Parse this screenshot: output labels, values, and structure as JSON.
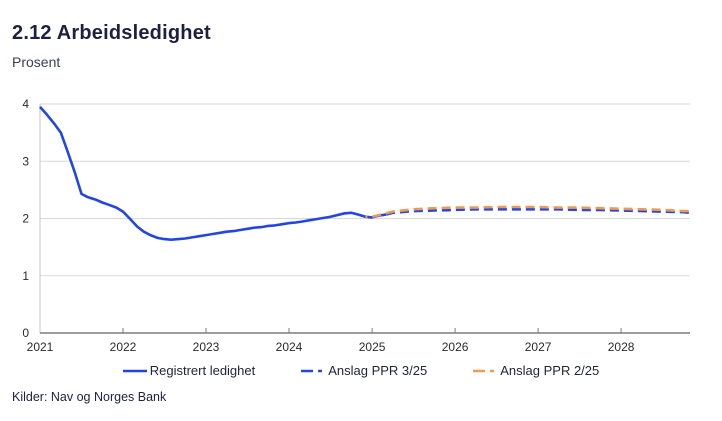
{
  "header": {
    "title": "2.12 Arbeidsledighet",
    "subtitle": "Prosent"
  },
  "source": "Kilder: Nav og Norges Bank",
  "colors": {
    "blue": "#2346e2",
    "orange": "#ef9a52",
    "grid": "#d9d9d9",
    "spine": "#c4c4c4",
    "axis": "#7d7d7d",
    "tick_text": "#2b2b2b"
  },
  "legend": [
    {
      "label": "Registrert ledighet",
      "color": "#2346e2",
      "dash": "solid"
    },
    {
      "label": "Anslag PPR 3/25",
      "color": "#2346e2",
      "dash": "dashed"
    },
    {
      "label": "Anslag PPR 2/25",
      "color": "#ef9a52",
      "dash": "dashed"
    }
  ],
  "chart_data": {
    "type": "line",
    "title": "2.12 Arbeidsledighet",
    "ylabel": "Prosent",
    "xlabel": "",
    "ylim": [
      0,
      4
    ],
    "yticks": [
      0,
      1,
      2,
      3,
      4
    ],
    "xlim": [
      2021,
      2028.83
    ],
    "xticks": [
      2021,
      2022,
      2023,
      2024,
      2025,
      2026,
      2027,
      2028
    ],
    "grid": true,
    "legend_position": "bottom",
    "series": [
      {
        "name": "Registrert ledighet",
        "color": "#2346e2",
        "dash": "solid",
        "points": [
          [
            2021.0,
            3.95
          ],
          [
            2021.08,
            3.82
          ],
          [
            2021.17,
            3.66
          ],
          [
            2021.25,
            3.5
          ],
          [
            2021.33,
            3.18
          ],
          [
            2021.42,
            2.8
          ],
          [
            2021.5,
            2.43
          ],
          [
            2021.58,
            2.37
          ],
          [
            2021.67,
            2.33
          ],
          [
            2021.75,
            2.28
          ],
          [
            2021.83,
            2.24
          ],
          [
            2021.92,
            2.19
          ],
          [
            2022.0,
            2.12
          ],
          [
            2022.08,
            2.0
          ],
          [
            2022.17,
            1.86
          ],
          [
            2022.25,
            1.77
          ],
          [
            2022.33,
            1.71
          ],
          [
            2022.42,
            1.66
          ],
          [
            2022.5,
            1.64
          ],
          [
            2022.58,
            1.63
          ],
          [
            2022.67,
            1.64
          ],
          [
            2022.75,
            1.65
          ],
          [
            2022.83,
            1.67
          ],
          [
            2022.92,
            1.69
          ],
          [
            2023.0,
            1.71
          ],
          [
            2023.08,
            1.73
          ],
          [
            2023.17,
            1.75
          ],
          [
            2023.25,
            1.77
          ],
          [
            2023.33,
            1.78
          ],
          [
            2023.42,
            1.8
          ],
          [
            2023.5,
            1.82
          ],
          [
            2023.58,
            1.84
          ],
          [
            2023.67,
            1.85
          ],
          [
            2023.75,
            1.87
          ],
          [
            2023.83,
            1.88
          ],
          [
            2023.92,
            1.9
          ],
          [
            2024.0,
            1.92
          ],
          [
            2024.08,
            1.93
          ],
          [
            2024.17,
            1.95
          ],
          [
            2024.25,
            1.97
          ],
          [
            2024.33,
            1.99
          ],
          [
            2024.42,
            2.01
          ],
          [
            2024.5,
            2.03
          ],
          [
            2024.58,
            2.06
          ],
          [
            2024.67,
            2.09
          ],
          [
            2024.75,
            2.1
          ],
          [
            2024.83,
            2.07
          ],
          [
            2024.92,
            2.03
          ],
          [
            2025.0,
            2.02
          ],
          [
            2025.08,
            2.05
          ],
          [
            2025.17,
            2.07
          ]
        ]
      },
      {
        "name": "Anslag PPR 3/25",
        "color": "#2346e2",
        "dash": "dashed",
        "points": [
          [
            2025.17,
            2.07
          ],
          [
            2025.25,
            2.1
          ],
          [
            2025.5,
            2.13
          ],
          [
            2025.75,
            2.14
          ],
          [
            2026.0,
            2.15
          ],
          [
            2026.25,
            2.16
          ],
          [
            2026.5,
            2.16
          ],
          [
            2026.75,
            2.16
          ],
          [
            2027.0,
            2.16
          ],
          [
            2027.25,
            2.16
          ],
          [
            2027.5,
            2.15
          ],
          [
            2027.75,
            2.15
          ],
          [
            2028.0,
            2.14
          ],
          [
            2028.25,
            2.13
          ],
          [
            2028.5,
            2.12
          ],
          [
            2028.75,
            2.11
          ],
          [
            2028.83,
            2.1
          ]
        ]
      },
      {
        "name": "Anslag PPR 2/25",
        "color": "#ef9a52",
        "dash": "dashed",
        "points": [
          [
            2024.92,
            2.02
          ],
          [
            2025.0,
            2.03
          ],
          [
            2025.25,
            2.12
          ],
          [
            2025.5,
            2.16
          ],
          [
            2025.75,
            2.18
          ],
          [
            2026.0,
            2.19
          ],
          [
            2026.25,
            2.19
          ],
          [
            2026.5,
            2.2
          ],
          [
            2026.75,
            2.2
          ],
          [
            2027.0,
            2.2
          ],
          [
            2027.25,
            2.19
          ],
          [
            2027.5,
            2.19
          ],
          [
            2027.75,
            2.18
          ],
          [
            2028.0,
            2.17
          ],
          [
            2028.25,
            2.16
          ],
          [
            2028.5,
            2.15
          ],
          [
            2028.75,
            2.13
          ],
          [
            2028.83,
            2.13
          ]
        ]
      }
    ]
  }
}
